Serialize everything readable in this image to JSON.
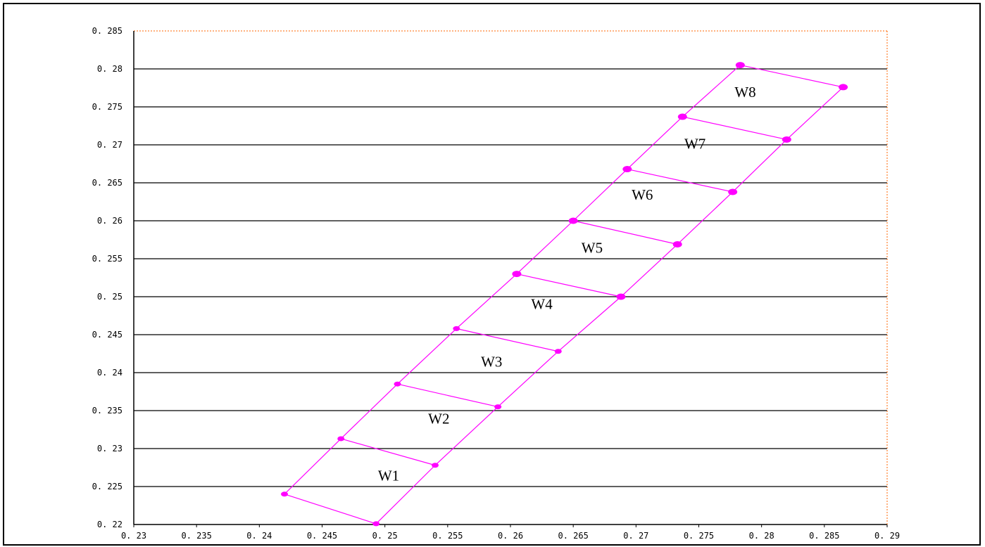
{
  "chart_data": {
    "type": "scatter",
    "title": "",
    "xlabel": "",
    "ylabel": "",
    "xlim": [
      0.23,
      0.29
    ],
    "ylim": [
      0.22,
      0.285
    ],
    "x_ticks": [
      "0.23",
      "0.235",
      "0.24",
      "0.245",
      "0.25",
      "0.255",
      "0.26",
      "0.265",
      "0.27",
      "0.275",
      "0.28",
      "0.285",
      "0.29"
    ],
    "y_ticks": [
      "0.22",
      "0.225",
      "0.23",
      "0.235",
      "0.24",
      "0.245",
      "0.25",
      "0.255",
      "0.26",
      "0.265",
      "0.27",
      "0.275",
      "0.28",
      "0.285"
    ],
    "grid": "horizontal",
    "series": [
      {
        "points_left": [
          {
            "x": 0.242,
            "y": 0.224
          },
          {
            "x": 0.2465,
            "y": 0.2313
          },
          {
            "x": 0.251,
            "y": 0.2385
          },
          {
            "x": 0.2557,
            "y": 0.2458
          },
          {
            "x": 0.2605,
            "y": 0.253
          },
          {
            "x": 0.265,
            "y": 0.26
          },
          {
            "x": 0.2693,
            "y": 0.2668
          },
          {
            "x": 0.2737,
            "y": 0.2737
          },
          {
            "x": 0.2783,
            "y": 0.2805
          }
        ],
        "points_right": [
          {
            "x": 0.2493,
            "y": 0.2201
          },
          {
            "x": 0.254,
            "y": 0.2278
          },
          {
            "x": 0.259,
            "y": 0.2355
          },
          {
            "x": 0.2638,
            "y": 0.2428
          },
          {
            "x": 0.2688,
            "y": 0.25
          },
          {
            "x": 0.2733,
            "y": 0.2569
          },
          {
            "x": 0.2777,
            "y": 0.2638
          },
          {
            "x": 0.282,
            "y": 0.2707
          },
          {
            "x": 0.2865,
            "y": 0.2776
          }
        ]
      }
    ],
    "annotations": [
      {
        "text": "W1",
        "x": 0.2503,
        "y": 0.2258
      },
      {
        "text": "W2",
        "x": 0.2543,
        "y": 0.2333
      },
      {
        "text": "W3",
        "x": 0.2585,
        "y": 0.2408
      },
      {
        "text": "W4",
        "x": 0.2625,
        "y": 0.2484
      },
      {
        "text": "W5",
        "x": 0.2665,
        "y": 0.2558
      },
      {
        "text": "W6",
        "x": 0.2705,
        "y": 0.2628
      },
      {
        "text": "W7",
        "x": 0.2747,
        "y": 0.2695
      },
      {
        "text": "W8",
        "x": 0.2787,
        "y": 0.2763
      }
    ],
    "colors": {
      "series": "#ff00ff",
      "grid": "#000000",
      "frame_dotted": "#ff6600"
    }
  }
}
